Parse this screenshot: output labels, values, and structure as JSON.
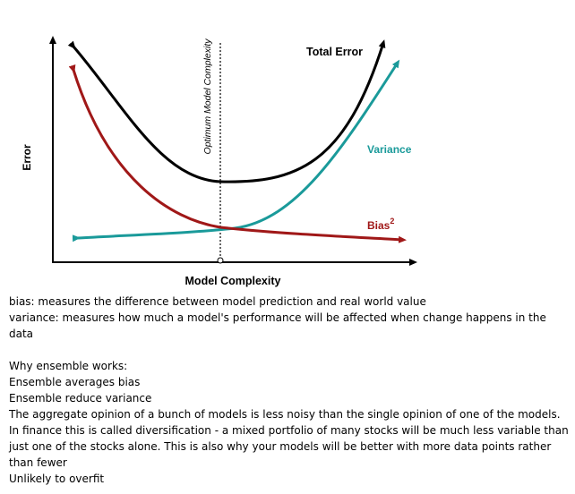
{
  "figure": {
    "y_axis_label": "Error",
    "x_axis_label": "Model Complexity",
    "optimum_label": "Optimum Model Complexity",
    "total_error_label": "Total Error",
    "variance_label": "Variance",
    "bias_label": "Bias",
    "bias_superscript": "2",
    "colors": {
      "total_error": "#000000",
      "variance": "#1a9a9a",
      "bias": "#a01818",
      "axis": "#000000"
    }
  },
  "notes": {
    "bias_definition": "bias: measures the difference between model prediction and real world value",
    "variance_definition": "variance: measures how much a model's performance will be affected when change happens in the data",
    "why_heading": "Why ensemble works:",
    "point_1": "Ensemble averages bias",
    "point_2": "Ensemble reduce variance",
    "point_3": "The aggregate opinion of a bunch of models is less noisy than the single opinion of one of the models. In finance this is called diversification - a mixed portfolio of many stocks will be much less variable than just one of the stocks alone. This is also why your models will be better with more data points rather than fewer",
    "point_4": "Unlikely to overfit"
  }
}
